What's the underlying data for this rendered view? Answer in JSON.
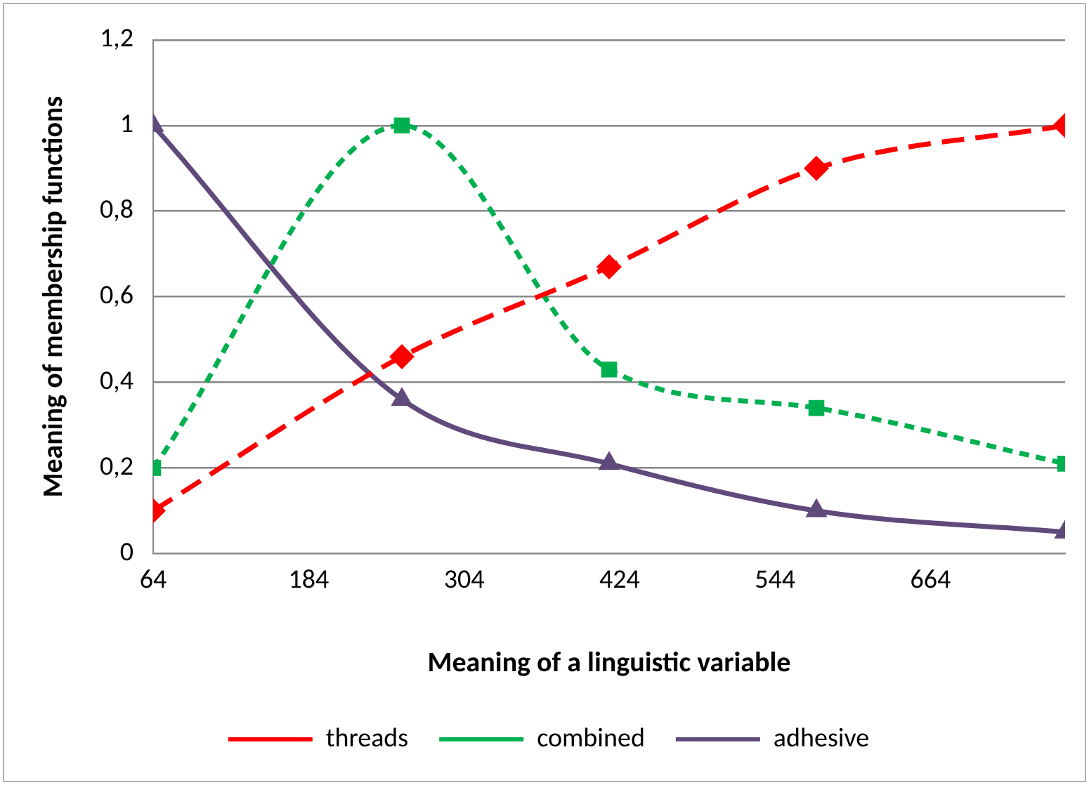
{
  "chart_data": {
    "type": "line",
    "xlabel": "Meaning of a linguistic variable",
    "ylabel": "Meaning of membership functions",
    "x": [
      64,
      256,
      416,
      576,
      768
    ],
    "series": [
      {
        "name": "threads",
        "color": "#ff0000",
        "marker": "diamond",
        "line_style": "dashed",
        "values": [
          0.1,
          0.46,
          0.67,
          0.9,
          1
        ]
      },
      {
        "name": "combined",
        "color": "#00b050",
        "marker": "square",
        "line_style": "dotted",
        "values": [
          0.2,
          1,
          0.43,
          0.34,
          0.21
        ]
      },
      {
        "name": "adhesive",
        "color": "#604a7b",
        "marker": "triangle",
        "line_style": "solid",
        "values": [
          1,
          0.36,
          0.21,
          0.1,
          0.05
        ]
      }
    ],
    "xlim": [
      64,
      768
    ],
    "xticks": [
      64,
      184,
      304,
      424,
      544,
      664
    ],
    "ylim": [
      0,
      1.2
    ],
    "yticks": [
      0,
      {
        "value": 0.2,
        "label": "0,2"
      },
      {
        "value": 0.4,
        "label": "0,4"
      },
      {
        "value": 0.6,
        "label": "0,6"
      },
      {
        "value": 0.8,
        "label": "0,8"
      },
      1,
      {
        "value": 1.2,
        "label": "1,2"
      }
    ],
    "grid": "y",
    "legend": "bottom"
  }
}
